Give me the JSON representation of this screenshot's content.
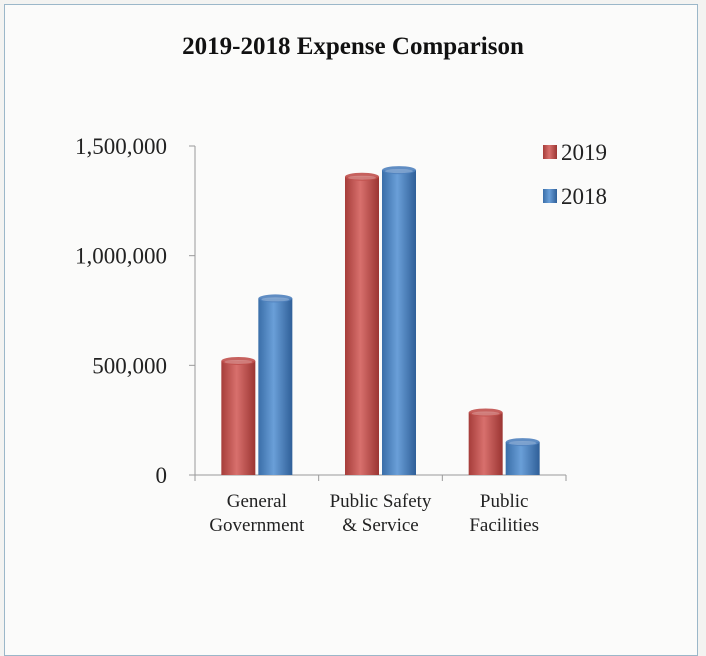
{
  "chart_data": {
    "type": "bar",
    "title": "2019-2018 Expense Comparison",
    "categories": [
      [
        "General",
        "Government"
      ],
      [
        "Public Safety",
        "& Service"
      ],
      [
        "Public",
        "Facilities"
      ]
    ],
    "series": [
      {
        "name": "2019",
        "values": [
          520000,
          1360000,
          285000
        ],
        "color": "#c0504d"
      },
      {
        "name": "2018",
        "values": [
          805000,
          1390000,
          150000
        ],
        "color": "#4f81bd"
      }
    ],
    "ylim": [
      0,
      1500000
    ],
    "yticks": [
      {
        "value": 0,
        "label": "0"
      },
      {
        "value": 500000,
        "label": "500,000"
      },
      {
        "value": 1000000,
        "label": "1,000,000"
      },
      {
        "value": 1500000,
        "label": "1,500,000"
      }
    ],
    "grid": false,
    "legend_position": "top-right"
  }
}
